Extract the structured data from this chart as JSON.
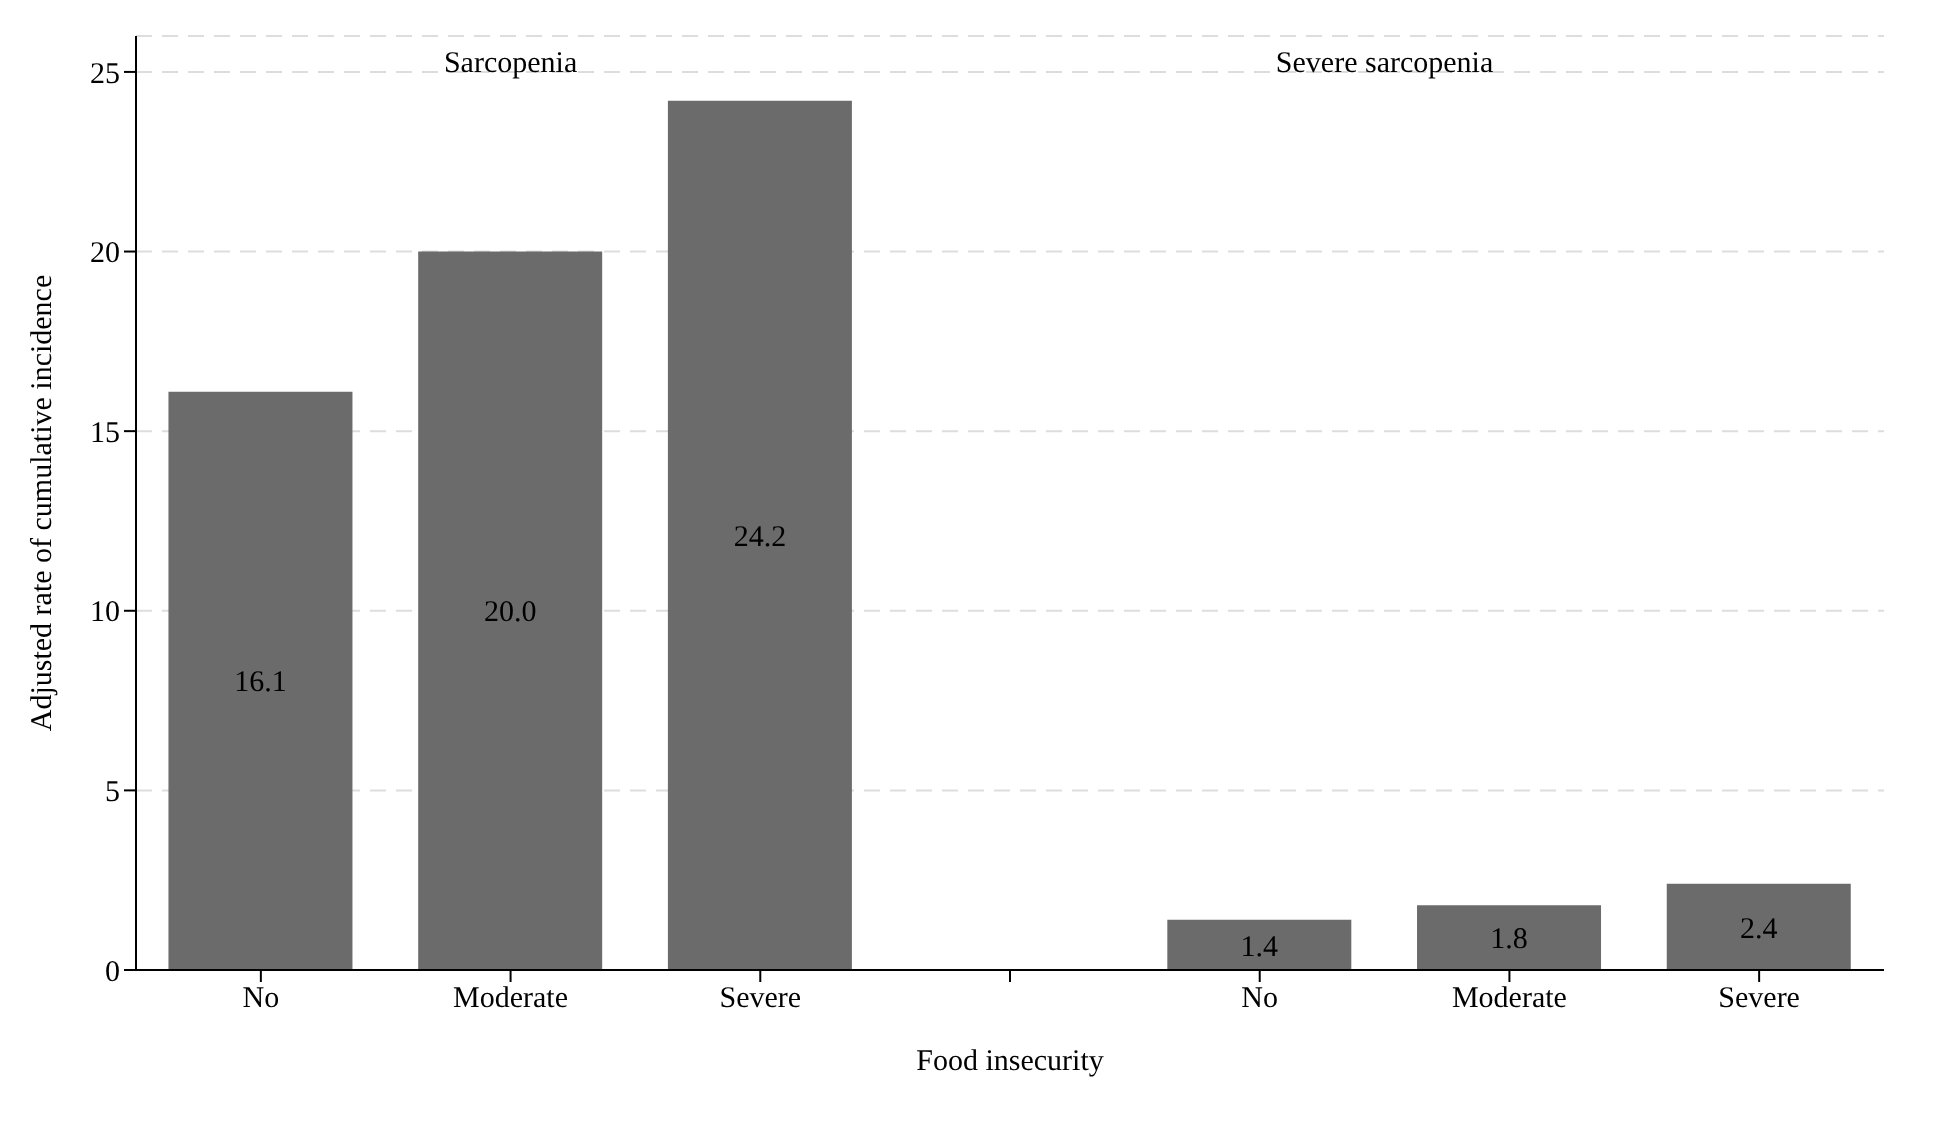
{
  "chart_data": {
    "type": "bar",
    "xlabel": "Food insecurity",
    "ylabel": "Adjusted rate of cumulative incidence",
    "categories": [
      "No",
      "Moderate",
      "Severe",
      null,
      "No",
      "Moderate",
      "Severe"
    ],
    "values": [
      16.1,
      20.0,
      24.2,
      null,
      1.4,
      1.8,
      2.4
    ],
    "value_labels": [
      "16.1",
      "20.0",
      "24.2",
      null,
      "1.4",
      "1.8",
      "2.4"
    ],
    "color": "#6b6b6b",
    "ylim": [
      0,
      26
    ],
    "yticks": [
      0,
      5,
      10,
      15,
      20,
      25
    ],
    "grid": "y",
    "annotations": [
      "Sarcopenia",
      "Severe sarcopenia"
    ]
  }
}
